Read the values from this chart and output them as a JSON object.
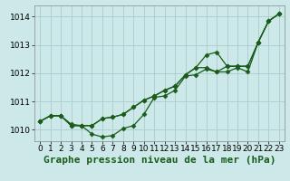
{
  "title": "Graphe pression niveau de la mer (hPa)",
  "bg_color": "#cce8e8",
  "grid_color": "#aacccc",
  "line_color": "#1a5c1a",
  "xlim": [
    -0.5,
    23.5
  ],
  "ylim": [
    1009.6,
    1014.4
  ],
  "yticks": [
    1010,
    1011,
    1012,
    1013,
    1014
  ],
  "xticks": [
    0,
    1,
    2,
    3,
    4,
    5,
    6,
    7,
    8,
    9,
    10,
    11,
    12,
    13,
    14,
    15,
    16,
    17,
    18,
    19,
    20,
    21,
    22,
    23
  ],
  "series": [
    [
      1010.3,
      1010.5,
      1010.5,
      1010.2,
      1010.15,
      1009.85,
      1009.75,
      1009.8,
      1010.05,
      1010.15,
      1010.55,
      1011.15,
      1011.2,
      1011.4,
      1011.9,
      1011.95,
      1012.15,
      1012.05,
      1012.05,
      1012.2,
      1012.05,
      1013.1,
      1013.85,
      1014.1
    ],
    [
      1010.3,
      1010.5,
      1010.5,
      1010.15,
      1010.15,
      1010.15,
      1010.4,
      1010.45,
      1010.55,
      1010.8,
      1011.05,
      1011.2,
      1011.4,
      1011.55,
      1011.95,
      1012.2,
      1012.2,
      1012.05,
      1012.25,
      1012.25,
      1012.25,
      1013.1,
      1013.85,
      1014.1
    ],
    [
      1010.3,
      1010.5,
      1010.5,
      1010.15,
      1010.15,
      1010.15,
      1010.4,
      1010.45,
      1010.55,
      1010.8,
      1011.05,
      1011.2,
      1011.4,
      1011.55,
      1011.95,
      1012.2,
      1012.65,
      1012.75,
      1012.25,
      1012.25,
      1012.25,
      1013.1,
      1013.85,
      1014.1
    ]
  ],
  "xlabel_fontsize": 8,
  "tick_fontsize": 6.5,
  "marker": "D",
  "markersize": 2.5,
  "linewidth": 0.9
}
